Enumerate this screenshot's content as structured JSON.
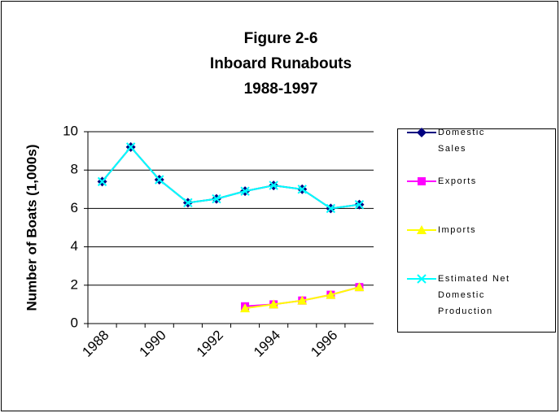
{
  "chart_data": {
    "type": "line",
    "title": [
      "Figure 2-6",
      "Inboard Runabouts",
      "1988-1997"
    ],
    "y_label": "Number of Boats (1,000s)",
    "categories": [
      "1988",
      null,
      "1990",
      null,
      "1992",
      null,
      "1994",
      null,
      "1996",
      null
    ],
    "series": [
      {
        "name": "Domestic Sales",
        "color": "#000080",
        "marker": "diamond",
        "values": [
          7.4,
          9.2,
          7.5,
          6.3,
          6.5,
          6.9,
          7.2,
          7.0,
          6.0,
          6.2
        ]
      },
      {
        "name": "Exports",
        "color": "#ff00ff",
        "marker": "square",
        "values": [
          null,
          null,
          null,
          null,
          null,
          0.9,
          1.0,
          1.2,
          1.5,
          1.9
        ]
      },
      {
        "name": "Imports",
        "color": "#ffff00",
        "marker": "triangle",
        "values": [
          null,
          null,
          null,
          null,
          null,
          0.8,
          1.0,
          1.2,
          1.5,
          1.9
        ]
      },
      {
        "name": "Estimated Net Domestic Production",
        "color": "#00ffff",
        "marker": "x",
        "values": [
          7.4,
          9.2,
          7.5,
          6.3,
          6.5,
          6.9,
          7.2,
          7.0,
          6.0,
          6.2
        ]
      }
    ],
    "ylim": [
      0,
      10
    ],
    "yticks": [
      0,
      2,
      4,
      6,
      8,
      10
    ],
    "grid": true,
    "legend": "right"
  }
}
